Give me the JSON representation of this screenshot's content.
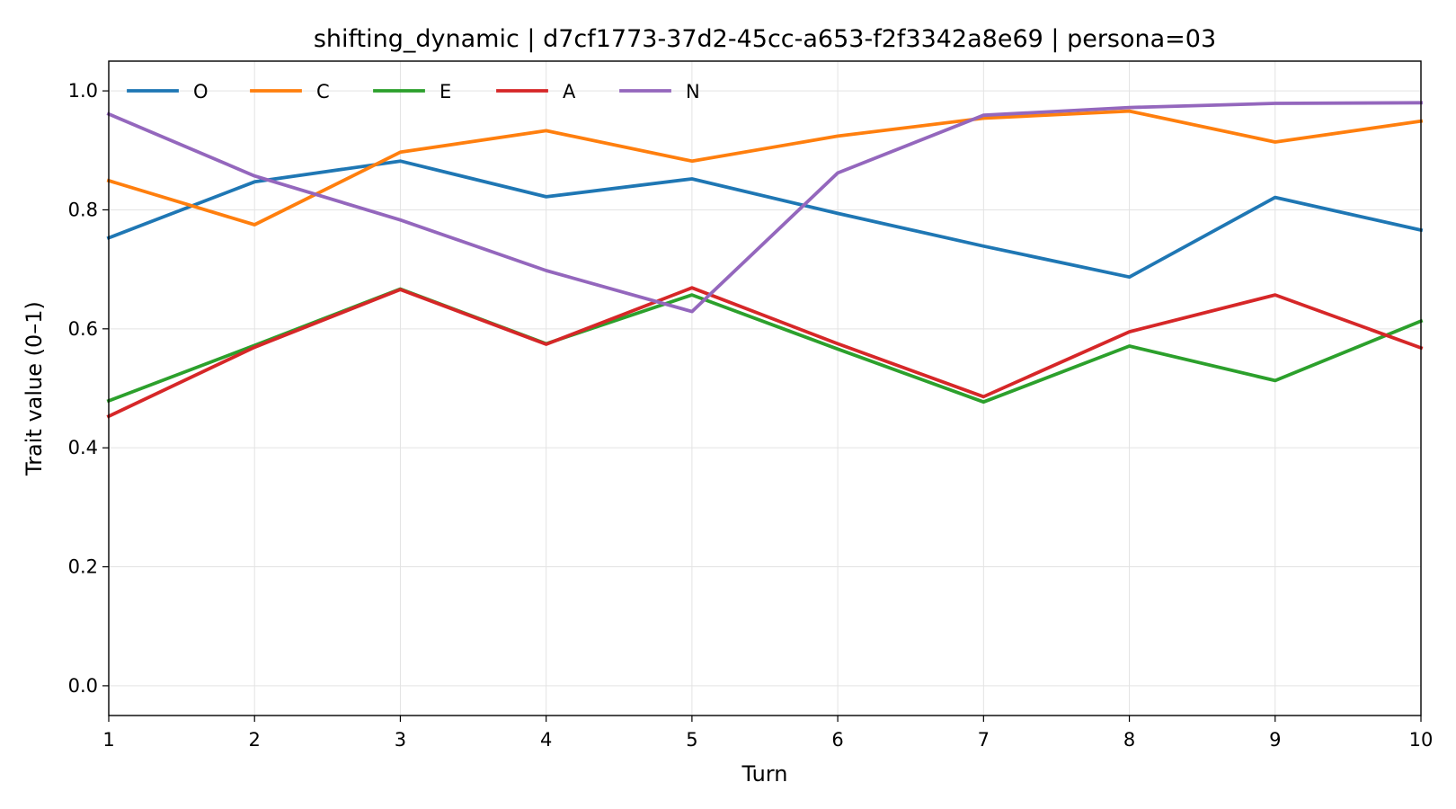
{
  "chart_data": {
    "type": "line",
    "title": "shifting_dynamic | d7cf1773-37d2-45cc-a653-f2f3342a8e69 | persona=03",
    "xlabel": "Turn",
    "ylabel": "Trait value (0–1)",
    "x": [
      1,
      2,
      3,
      4,
      5,
      6,
      7,
      8,
      9,
      10
    ],
    "xlim": [
      1,
      10
    ],
    "ylim": [
      -0.05,
      1.05
    ],
    "xticks": [
      1,
      2,
      3,
      4,
      5,
      6,
      7,
      8,
      9,
      10
    ],
    "yticks": [
      0.0,
      0.2,
      0.4,
      0.6,
      0.8,
      1.0
    ],
    "xtick_labels": [
      "1",
      "2",
      "3",
      "4",
      "5",
      "6",
      "7",
      "8",
      "9",
      "10"
    ],
    "ytick_labels": [
      "0.0",
      "0.2",
      "0.4",
      "0.6",
      "0.8",
      "1.0"
    ],
    "grid": true,
    "legend_position": "top-left",
    "series": [
      {
        "name": "O",
        "color": "#1f77b4",
        "values": [
          0.753,
          0.847,
          0.882,
          0.822,
          0.852,
          0.794,
          0.739,
          0.687,
          0.821,
          0.766
        ]
      },
      {
        "name": "C",
        "color": "#ff7f0e",
        "values": [
          0.849,
          0.775,
          0.897,
          0.933,
          0.882,
          0.924,
          0.954,
          0.966,
          0.914,
          0.949
        ]
      },
      {
        "name": "E",
        "color": "#2ca02c",
        "values": [
          0.479,
          0.572,
          0.667,
          0.575,
          0.657,
          0.566,
          0.477,
          0.571,
          0.513,
          0.613
        ]
      },
      {
        "name": "A",
        "color": "#d62728",
        "values": [
          0.453,
          0.569,
          0.666,
          0.574,
          0.669,
          0.575,
          0.486,
          0.595,
          0.657,
          0.568
        ]
      },
      {
        "name": "N",
        "color": "#9467bd",
        "values": [
          0.961,
          0.857,
          0.783,
          0.698,
          0.629,
          0.862,
          0.959,
          0.972,
          0.979,
          0.98
        ]
      }
    ]
  }
}
